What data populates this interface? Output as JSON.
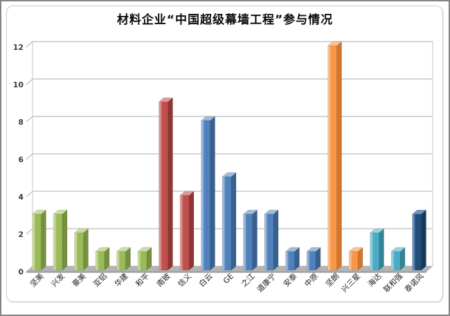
{
  "window": {
    "outer_border_color": "#838383",
    "frame_border_color": "#c9c9c9",
    "background": "#ffffff"
  },
  "chart_data": {
    "type": "bar",
    "style": "3d-column",
    "title": "材料企业“中国超级幕墙工程”参与情况",
    "xlabel": "",
    "ylabel": "",
    "legend": "none",
    "grid": true,
    "ylim": [
      0,
      12
    ],
    "y_ticks": [
      0,
      2,
      4,
      6,
      8,
      10,
      12
    ],
    "categories": [
      "坚美",
      "兴发",
      "豪美",
      "亚铝",
      "华建",
      "和平",
      "南玻",
      "信义",
      "白云",
      "GE",
      "之江",
      "道康宁",
      "安泰",
      "中原",
      "坚朗",
      "兴三星",
      "海达",
      "联和强",
      "泰诺风"
    ],
    "values": [
      3,
      3,
      2,
      1,
      1,
      1,
      9,
      4,
      8,
      5,
      3,
      3,
      1,
      1,
      12,
      1,
      2,
      1,
      3
    ],
    "bar_color_groups": [
      "green",
      "green",
      "green",
      "green",
      "green",
      "green",
      "red",
      "red",
      "blue",
      "blue",
      "blue",
      "blue",
      "blue",
      "blue",
      "orange",
      "orange",
      "cyan",
      "cyan",
      "navy"
    ],
    "palette": {
      "green": {
        "base": "#9ABB59",
        "light": "#CBDDA4",
        "dark": "#75913E"
      },
      "red": {
        "base": "#C0504D",
        "light": "#DC9B99",
        "dark": "#903634"
      },
      "blue": {
        "base": "#4F81BD",
        "light": "#9FBBDC",
        "dark": "#38618F"
      },
      "orange": {
        "base": "#F79646",
        "light": "#FCC394",
        "dark": "#D3752C"
      },
      "cyan": {
        "base": "#4BACC6",
        "light": "#9AD2E0",
        "dark": "#338399"
      },
      "navy": {
        "base": "#1F4E79",
        "light": "#6C93BE",
        "dark": "#173A5A"
      }
    },
    "gridline_color": "#ababab",
    "wall_edge_color": "#c4c4c4",
    "floor_color": "#b4b4b4",
    "floor_edge_color": "#8f8f8f",
    "axis_text_color": "#3d3d3d"
  }
}
